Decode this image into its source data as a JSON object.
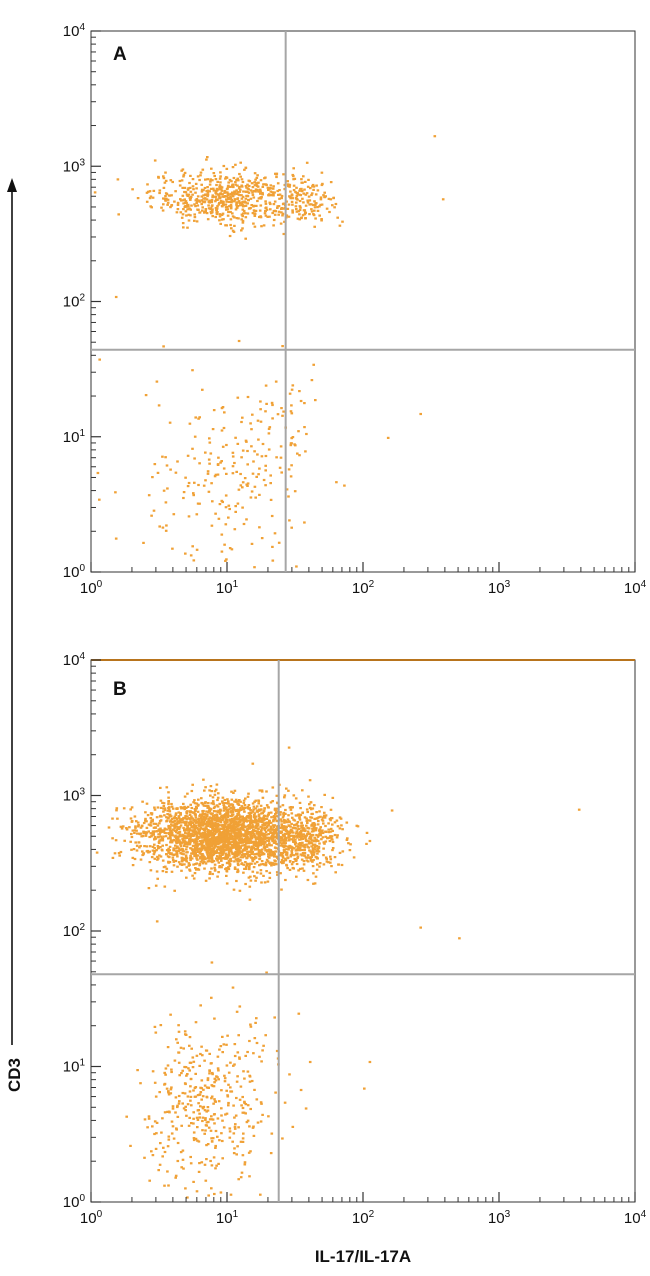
{
  "chart_data": [
    {
      "type": "scatter",
      "panel_label": "A",
      "xlabel": "IL-17/IL-17A",
      "ylabel": "CD3",
      "xscale": "log",
      "yscale": "log",
      "xlim": [
        1,
        10000
      ],
      "ylim": [
        1,
        10000
      ],
      "x_ticks": [
        {
          "base": "10",
          "exp": "0"
        },
        {
          "base": "10",
          "exp": "1"
        },
        {
          "base": "10",
          "exp": "2"
        },
        {
          "base": "10",
          "exp": "3"
        },
        {
          "base": "10",
          "exp": "4"
        }
      ],
      "y_ticks": [
        {
          "base": "10",
          "exp": "0"
        },
        {
          "base": "10",
          "exp": "1"
        },
        {
          "base": "10",
          "exp": "2"
        },
        {
          "base": "10",
          "exp": "3"
        },
        {
          "base": "10",
          "exp": "4"
        }
      ],
      "quadrant_gates": {
        "x": 27,
        "y": 44
      },
      "grid": false,
      "point_color": "#f0a136",
      "populations": [
        {
          "center": [
            10,
            600
          ],
          "spread_log": [
            0.28,
            0.1
          ],
          "count": 620
        },
        {
          "center": [
            38,
            560
          ],
          "spread_log": [
            0.12,
            0.09
          ],
          "count": 110
        },
        {
          "center": [
            10,
            4.5
          ],
          "spread_log": [
            0.3,
            0.35
          ],
          "count": 210
        },
        {
          "center": [
            28,
            12
          ],
          "spread_log": [
            0.12,
            0.25
          ],
          "count": 40
        }
      ],
      "scatter_points": [
        [
          330,
          1700
        ],
        [
          150,
          10
        ],
        [
          260,
          15
        ],
        [
          1.5,
          110
        ],
        [
          1.0,
          95
        ],
        [
          12,
          52
        ],
        [
          380,
          580
        ],
        [
          1.5,
          1.8
        ],
        [
          2.2,
          1.0
        ],
        [
          1.1,
          5.5
        ]
      ]
    },
    {
      "type": "scatter",
      "panel_label": "B",
      "xlabel": "IL-17/IL-17A",
      "ylabel": "CD3",
      "xscale": "log",
      "yscale": "log",
      "xlim": [
        1,
        10000
      ],
      "ylim": [
        1,
        10000
      ],
      "x_ticks": [
        {
          "base": "10",
          "exp": "0"
        },
        {
          "base": "10",
          "exp": "1"
        },
        {
          "base": "10",
          "exp": "2"
        },
        {
          "base": "10",
          "exp": "3"
        },
        {
          "base": "10",
          "exp": "4"
        }
      ],
      "y_ticks": [
        {
          "base": "10",
          "exp": "0"
        },
        {
          "base": "10",
          "exp": "1"
        },
        {
          "base": "10",
          "exp": "2"
        },
        {
          "base": "10",
          "exp": "3"
        },
        {
          "base": "10",
          "exp": "4"
        }
      ],
      "quadrant_gates": {
        "x": 24,
        "y": 48
      },
      "grid": false,
      "point_color": "#f0a136",
      "populations": [
        {
          "center": [
            9,
            520
          ],
          "spread_log": [
            0.3,
            0.13
          ],
          "count": 2600
        },
        {
          "center": [
            38,
            480
          ],
          "spread_log": [
            0.13,
            0.11
          ],
          "count": 380
        },
        {
          "center": [
            7,
            5.5
          ],
          "spread_log": [
            0.24,
            0.3
          ],
          "count": 420
        }
      ],
      "scatter_points": [
        [
          3800,
          800
        ],
        [
          9800,
          340
        ],
        [
          9600,
          750
        ],
        [
          500,
          90
        ],
        [
          260,
          108
        ],
        [
          160,
          790
        ],
        [
          110,
          470
        ],
        [
          28,
          2300
        ],
        [
          100,
          7
        ],
        [
          110,
          11
        ],
        [
          25,
          3
        ],
        [
          33,
          25
        ],
        [
          40,
          11
        ],
        [
          3,
          120
        ],
        [
          5,
          1.1
        ]
      ]
    }
  ]
}
